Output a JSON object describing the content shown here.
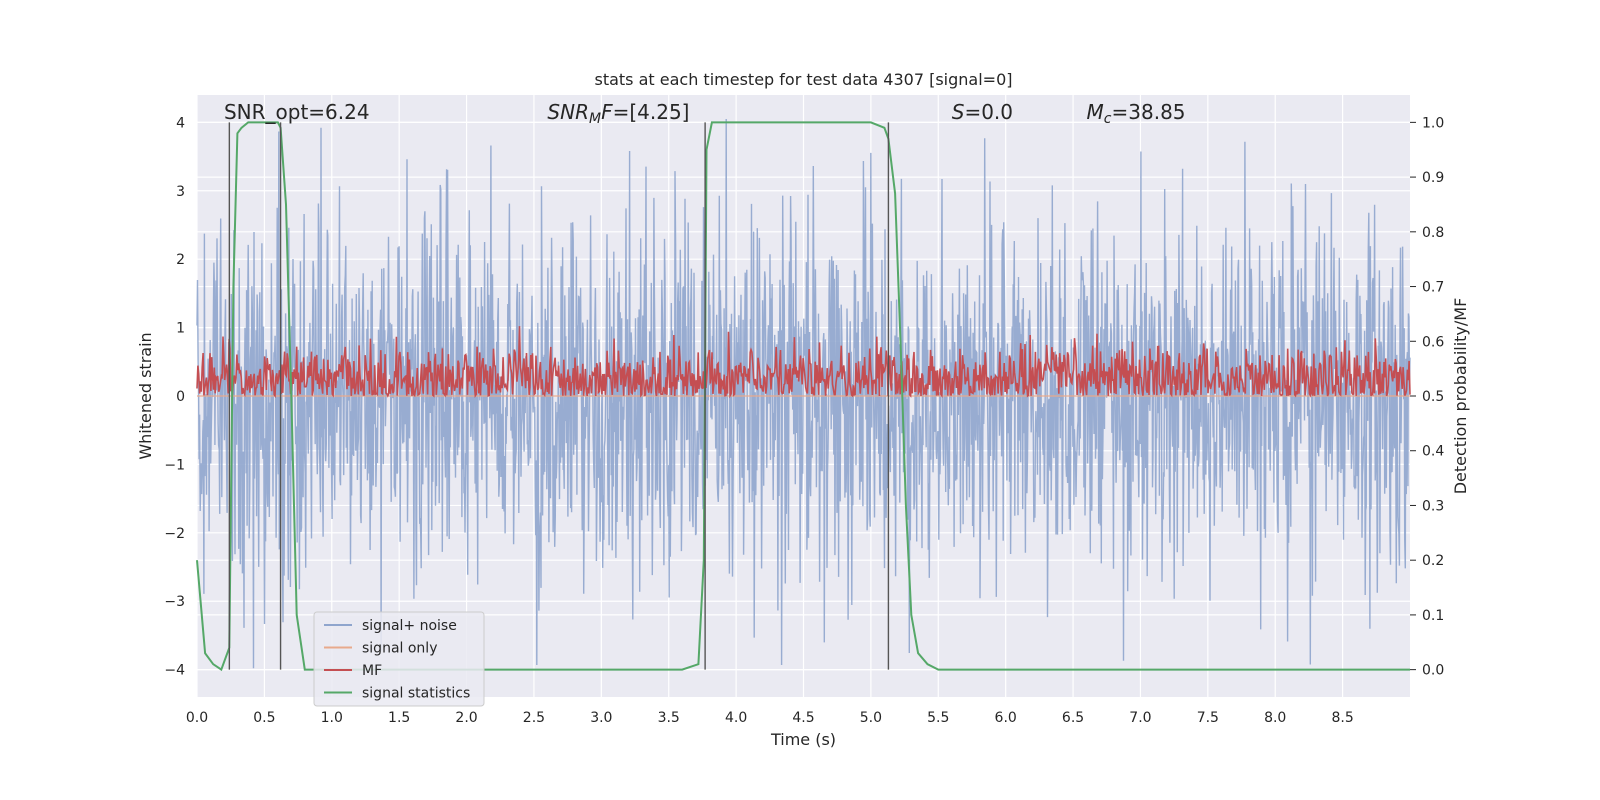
{
  "chart_data": {
    "type": "line",
    "title": "stats at each timestep for test data 4307 [signal=0]",
    "xlabel": "Time (s)",
    "ylabel": "Whitened strain",
    "y2label": "Detection probability/MF",
    "xlim": [
      0.0,
      9.0
    ],
    "ylim": [
      -4.4,
      4.4
    ],
    "y2lim": [
      -0.05,
      1.05
    ],
    "x_ticks": [
      0.0,
      0.5,
      1.0,
      1.5,
      2.0,
      2.5,
      3.0,
      3.5,
      4.0,
      4.5,
      5.0,
      5.5,
      6.0,
      6.5,
      7.0,
      7.5,
      8.0,
      8.5
    ],
    "x_tick_labels": [
      "0.0",
      "0.5",
      "1.0",
      "1.5",
      "2.0",
      "2.5",
      "3.0",
      "3.5",
      "4.0",
      "4.5",
      "5.0",
      "5.5",
      "6.0",
      "6.5",
      "7.0",
      "7.5",
      "8.0",
      "8.5"
    ],
    "y_ticks": [
      -4,
      -3,
      -2,
      -1,
      0,
      1,
      2,
      3,
      4
    ],
    "y_tick_labels": [
      "−4",
      "−3",
      "−2",
      "−1",
      "0",
      "1",
      "2",
      "3",
      "4"
    ],
    "y2_ticks": [
      0.0,
      0.1,
      0.2,
      0.3,
      0.4,
      0.5,
      0.6,
      0.7,
      0.8,
      0.9,
      1.0
    ],
    "y2_tick_labels": [
      "0.0",
      "0.1",
      "0.2",
      "0.3",
      "0.4",
      "0.5",
      "0.6",
      "0.7",
      "0.8",
      "0.9",
      "1.0"
    ],
    "grid": true,
    "legend_position": "lower-left",
    "annotations": [
      {
        "text": "SNR_opt=6.24",
        "x": 0.2,
        "y": 4.05
      },
      {
        "text": "SNR_MF=[4.25]",
        "x": 2.6,
        "y": 4.05
      },
      {
        "text": "S=0.0",
        "x": 5.6,
        "y": 4.05
      },
      {
        "text": "M_c=38.85",
        "x": 6.6,
        "y": 4.05
      }
    ],
    "vertical_lines": [
      0.24,
      0.62,
      3.77,
      5.13
    ],
    "series": [
      {
        "name": "signal+ noise",
        "color": "#8fa5cd",
        "axis": "left",
        "style": "noise",
        "amplitude_sigma": 1.0,
        "n_points": 2300
      },
      {
        "name": "signal only",
        "color": "#e8a98c",
        "axis": "left",
        "style": "flat",
        "values": [
          0
        ]
      },
      {
        "name": "MF",
        "color": "#c44e52",
        "axis": "right",
        "style": "mf",
        "baseline": 0.53,
        "spread": 0.03
      },
      {
        "name": "signal statistics",
        "color": "#55a868",
        "axis": "right",
        "style": "line",
        "x": [
          0.0,
          0.06,
          0.12,
          0.18,
          0.24,
          0.27,
          0.3,
          0.33,
          0.38,
          0.45,
          0.55,
          0.6,
          0.62,
          0.66,
          0.7,
          0.74,
          0.8,
          0.9,
          1.2,
          2.0,
          3.0,
          3.6,
          3.72,
          3.76,
          3.78,
          3.82,
          3.9,
          4.5,
          5.0,
          5.05,
          5.1,
          5.13,
          5.18,
          5.22,
          5.26,
          5.3,
          5.35,
          5.42,
          5.5,
          5.6,
          6.0,
          7.0,
          8.0,
          9.0
        ],
        "values": [
          0.2,
          0.03,
          0.01,
          0.0,
          0.04,
          0.7,
          0.98,
          0.99,
          1.0,
          1.0,
          1.0,
          1.0,
          0.99,
          0.85,
          0.5,
          0.1,
          0.0,
          0.0,
          0.0,
          0.0,
          0.0,
          0.0,
          0.01,
          0.2,
          0.95,
          1.0,
          1.0,
          1.0,
          1.0,
          0.995,
          0.99,
          0.97,
          0.87,
          0.6,
          0.3,
          0.1,
          0.03,
          0.01,
          0.0,
          0.0,
          0.0,
          0.0,
          0.0,
          0.0
        ]
      }
    ]
  }
}
